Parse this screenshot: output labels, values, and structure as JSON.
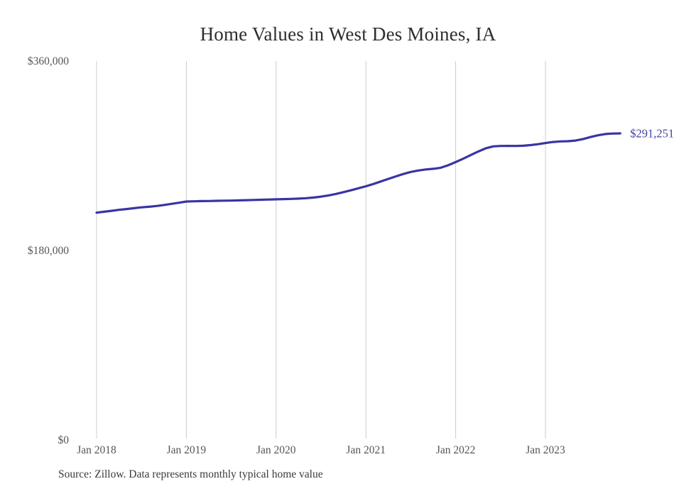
{
  "chart_data": {
    "type": "line",
    "title": "Home Values in West Des Moines, IA",
    "source_note": "Source: Zillow. Data represents monthly typical home value",
    "end_label": "$291,251",
    "end_value": 291251,
    "x_start": "Jan 2018",
    "x_end": "Nov 2023",
    "ylim": [
      0,
      360000
    ],
    "grid": "vertical-only",
    "legend": "none",
    "y_ticks": [
      {
        "label": "$0",
        "value": 0
      },
      {
        "label": "$180,000",
        "value": 180000
      },
      {
        "label": "$360,000",
        "value": 360000
      }
    ],
    "x_ticks": [
      {
        "label": "Jan 2018",
        "month_index": 0
      },
      {
        "label": "Jan 2019",
        "month_index": 12
      },
      {
        "label": "Jan 2020",
        "month_index": 24
      },
      {
        "label": "Jan 2021",
        "month_index": 36
      },
      {
        "label": "Jan 2022",
        "month_index": 48
      },
      {
        "label": "Jan 2023",
        "month_index": 60
      }
    ],
    "series": [
      {
        "name": "Monthly typical home value",
        "color": "#3a34a3",
        "values": [
          215900,
          216800,
          217700,
          218600,
          219400,
          220200,
          221000,
          221500,
          222300,
          223200,
          224300,
          225400,
          226500,
          226700,
          226900,
          227000,
          227200,
          227300,
          227400,
          227600,
          227800,
          228000,
          228200,
          228400,
          228600,
          228800,
          229000,
          229300,
          229700,
          230300,
          231200,
          232300,
          233700,
          235400,
          237200,
          239100,
          241000,
          243200,
          245600,
          248000,
          250400,
          252700,
          254600,
          256000,
          257000,
          257600,
          258600,
          261000,
          264000,
          267200,
          270600,
          274000,
          277000,
          278900,
          279300,
          279400,
          279300,
          279500,
          280100,
          281000,
          282100,
          283100,
          283600,
          283800,
          284400,
          285800,
          287700,
          289400,
          290600,
          291100,
          291251
        ]
      }
    ],
    "colors": {
      "line": "#3a34a3",
      "end_label_text": "#4444a4",
      "gridline": "#cccccc",
      "axis_labels": "#555555",
      "title_text": "#2e2e2e",
      "source_text": "#3a3a3a",
      "background": "#ffffff"
    }
  }
}
